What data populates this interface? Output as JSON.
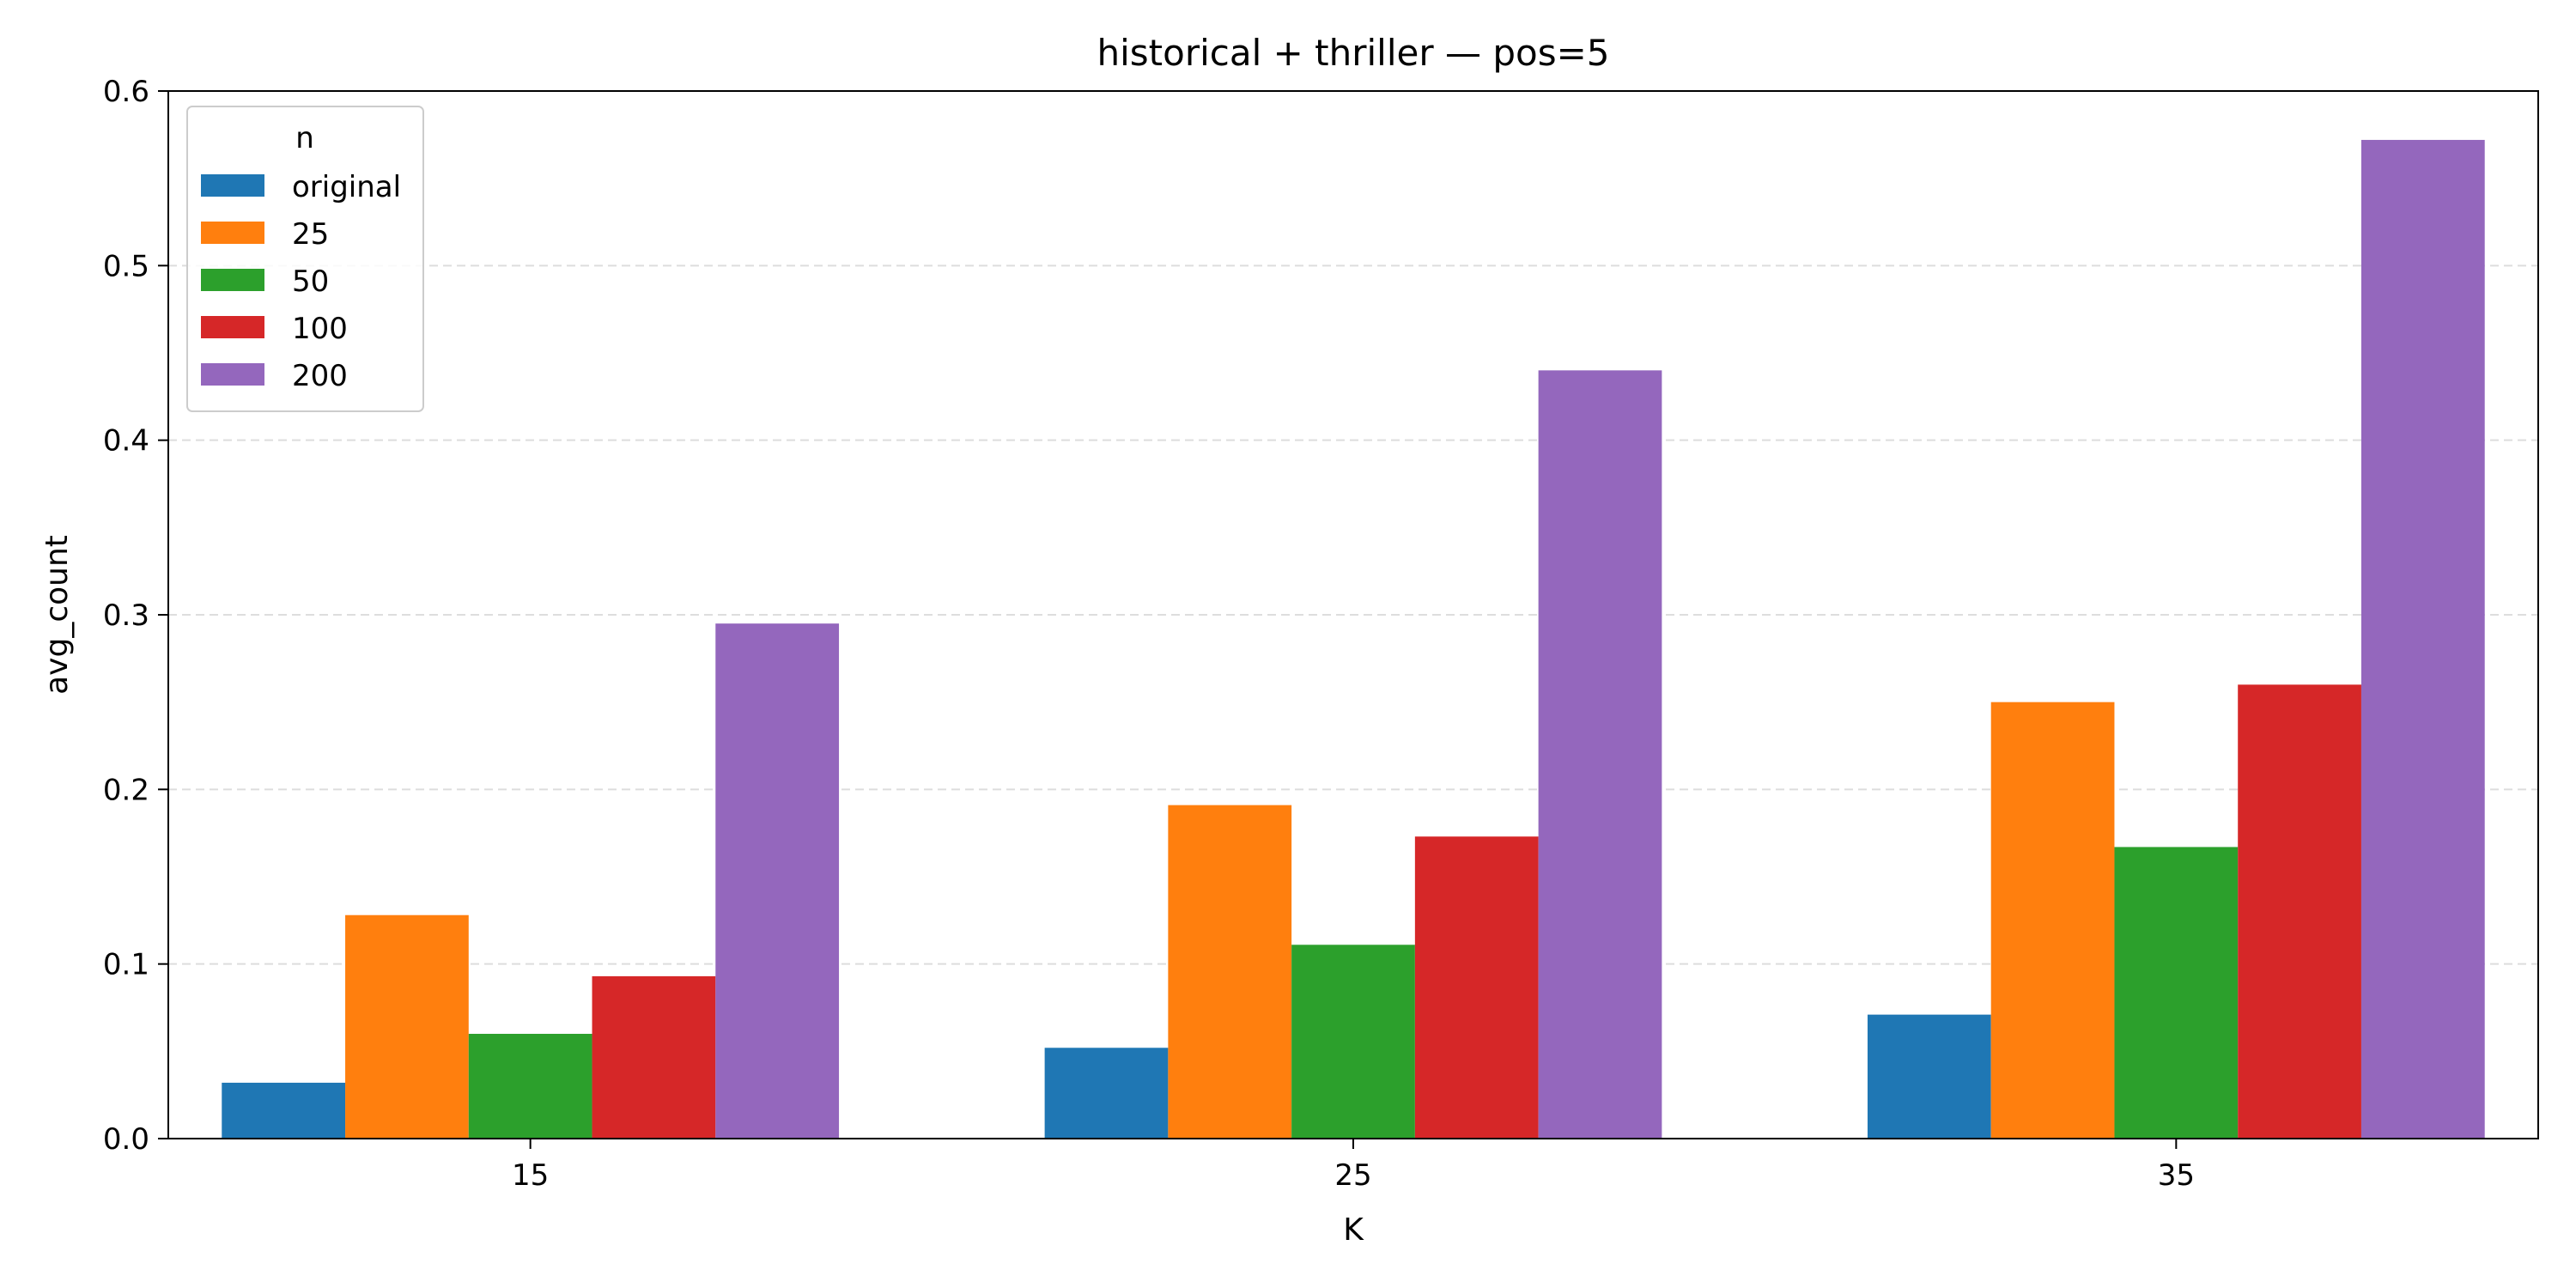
{
  "chart_data": {
    "type": "bar",
    "title": "historical + thriller — pos=5",
    "xlabel": "K",
    "ylabel": "avg_count",
    "categories": [
      "15",
      "25",
      "35"
    ],
    "ylim": [
      0,
      0.6
    ],
    "yticks": [
      0.0,
      0.1,
      0.2,
      0.3,
      0.4,
      0.5,
      0.6
    ],
    "ytick_labels": [
      "0.0",
      "0.1",
      "0.2",
      "0.3",
      "0.4",
      "0.5",
      "0.6"
    ],
    "grid": "y-dashed",
    "legend": {
      "title": "n",
      "placement": "top-left"
    },
    "series": [
      {
        "name": "original",
        "color": "#1f77b4",
        "values": [
          0.032,
          0.052,
          0.071
        ]
      },
      {
        "name": "25",
        "color": "#ff7f0e",
        "values": [
          0.128,
          0.191,
          0.25
        ]
      },
      {
        "name": "50",
        "color": "#2ca02c",
        "values": [
          0.06,
          0.111,
          0.167
        ]
      },
      {
        "name": "100",
        "color": "#d62728",
        "values": [
          0.093,
          0.173,
          0.26
        ]
      },
      {
        "name": "200",
        "color": "#9467bd",
        "values": [
          0.295,
          0.44,
          0.572
        ]
      }
    ]
  }
}
